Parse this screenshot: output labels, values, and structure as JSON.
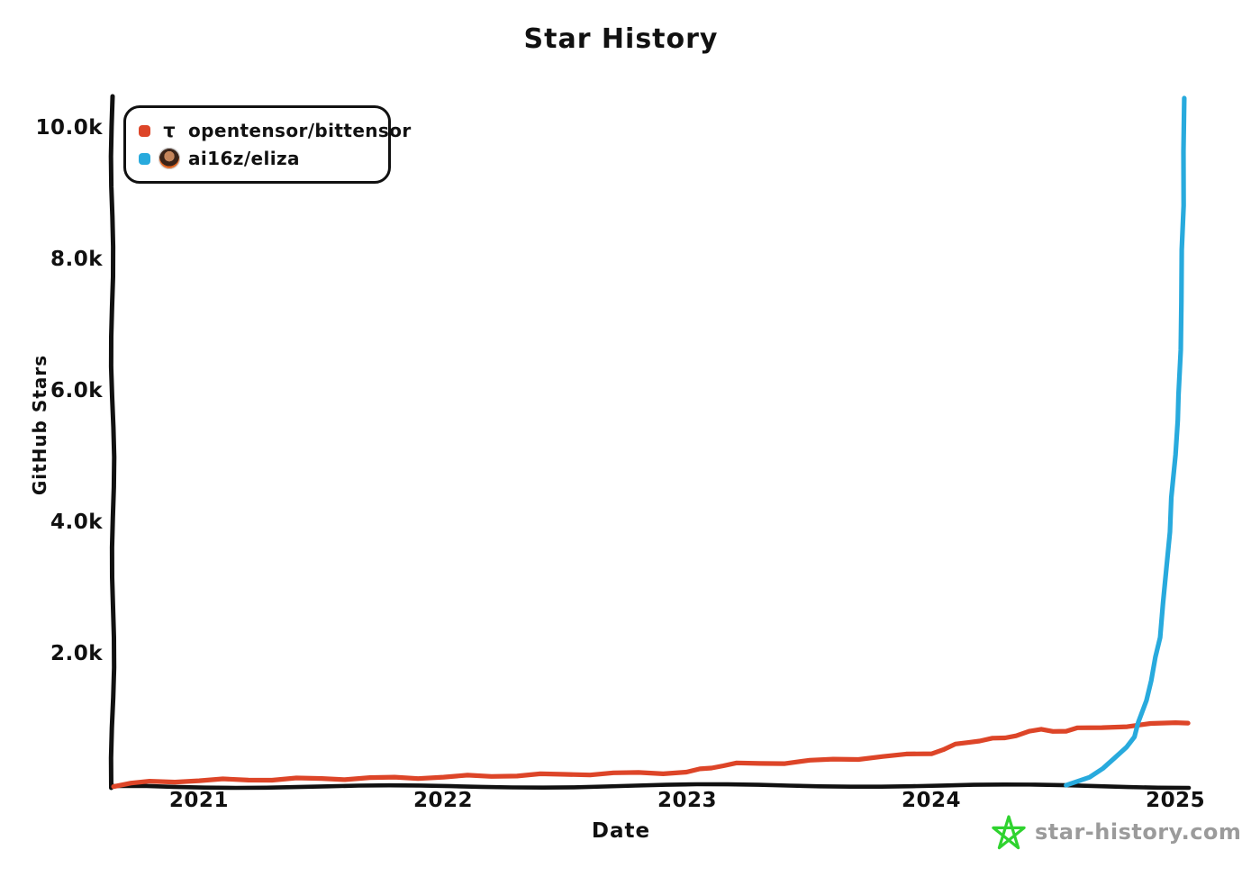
{
  "title": "Star History",
  "watermark": {
    "label": "star-history.com",
    "star_icon_color": "#2fd32f",
    "text_color": "#9b9b9b"
  },
  "chart_data": {
    "type": "line",
    "title": "Star History",
    "xlabel": "Date",
    "ylabel": "GitHub Stars",
    "grid": false,
    "legend_position": "top-left",
    "background_color": "#ffffff",
    "axis_color": "#111111",
    "xlim": [
      2020.646,
      2025.055
    ],
    "ylim": [
      0,
      10452
    ],
    "x_ticks": [
      {
        "value": 2021,
        "label": "2021"
      },
      {
        "value": 2022,
        "label": "2022"
      },
      {
        "value": 2023,
        "label": "2023"
      },
      {
        "value": 2024,
        "label": "2024"
      },
      {
        "value": 2025,
        "label": "2025"
      }
    ],
    "y_ticks": [
      {
        "value": 2000,
        "label": "2.0k"
      },
      {
        "value": 4000,
        "label": "4.0k"
      },
      {
        "value": 6000,
        "label": "6.0k"
      },
      {
        "value": 8000,
        "label": "8.0k"
      },
      {
        "value": 10000,
        "label": "10.0k"
      }
    ],
    "series": [
      {
        "name": "opentensor/bittensor",
        "slug": "opentensor-bittensor",
        "color": "#dd4528",
        "icon": "tau-logo",
        "icon_glyph": "τ",
        "points": [
          [
            2020.65,
            10
          ],
          [
            2020.72,
            40
          ],
          [
            2020.8,
            60
          ],
          [
            2020.9,
            75
          ],
          [
            2021.0,
            85
          ],
          [
            2021.1,
            92
          ],
          [
            2021.2,
            98
          ],
          [
            2021.3,
            102
          ],
          [
            2021.4,
            108
          ],
          [
            2021.5,
            112
          ],
          [
            2021.6,
            115
          ],
          [
            2021.7,
            120
          ],
          [
            2021.8,
            124
          ],
          [
            2021.9,
            130
          ],
          [
            2022.0,
            138
          ],
          [
            2022.1,
            148
          ],
          [
            2022.2,
            156
          ],
          [
            2022.3,
            163
          ],
          [
            2022.4,
            170
          ],
          [
            2022.5,
            178
          ],
          [
            2022.6,
            185
          ],
          [
            2022.7,
            191
          ],
          [
            2022.8,
            197
          ],
          [
            2022.9,
            203
          ],
          [
            2023.0,
            212
          ],
          [
            2023.05,
            245
          ],
          [
            2023.1,
            285
          ],
          [
            2023.15,
            318
          ],
          [
            2023.2,
            335
          ],
          [
            2023.3,
            346
          ],
          [
            2023.4,
            357
          ],
          [
            2023.5,
            380
          ],
          [
            2023.6,
            402
          ],
          [
            2023.7,
            422
          ],
          [
            2023.8,
            446
          ],
          [
            2023.9,
            472
          ],
          [
            2024.0,
            505
          ],
          [
            2024.05,
            560
          ],
          [
            2024.1,
            622
          ],
          [
            2024.15,
            668
          ],
          [
            2024.2,
            700
          ],
          [
            2024.25,
            715
          ],
          [
            2024.3,
            728
          ],
          [
            2024.35,
            782
          ],
          [
            2024.4,
            828
          ],
          [
            2024.45,
            850
          ],
          [
            2024.5,
            846
          ],
          [
            2024.55,
            838
          ],
          [
            2024.6,
            868
          ],
          [
            2024.7,
            896
          ],
          [
            2024.8,
            916
          ],
          [
            2024.9,
            936
          ],
          [
            2025.0,
            962
          ],
          [
            2025.05,
            975
          ]
        ]
      },
      {
        "name": "ai16z/eliza",
        "slug": "ai16z-eliza",
        "color": "#28aadd",
        "icon": "eliza-avatar",
        "points": [
          [
            2024.55,
            5
          ],
          [
            2024.6,
            60
          ],
          [
            2024.65,
            150
          ],
          [
            2024.7,
            270
          ],
          [
            2024.75,
            400
          ],
          [
            2024.8,
            600
          ],
          [
            2024.83,
            760
          ],
          [
            2024.85,
            950
          ],
          [
            2024.88,
            1300
          ],
          [
            2024.9,
            1620
          ],
          [
            2024.92,
            1950
          ],
          [
            2024.935,
            2250
          ],
          [
            2024.95,
            2800
          ],
          [
            2024.965,
            3350
          ],
          [
            2024.975,
            3850
          ],
          [
            2024.985,
            4400
          ],
          [
            2025.0,
            5050
          ],
          [
            2025.008,
            5550
          ],
          [
            2025.015,
            5950
          ],
          [
            2025.02,
            6650
          ],
          [
            2025.024,
            7350
          ],
          [
            2025.028,
            8150
          ],
          [
            2025.031,
            8850
          ],
          [
            2025.034,
            9650
          ],
          [
            2025.037,
            10450
          ]
        ]
      }
    ]
  }
}
